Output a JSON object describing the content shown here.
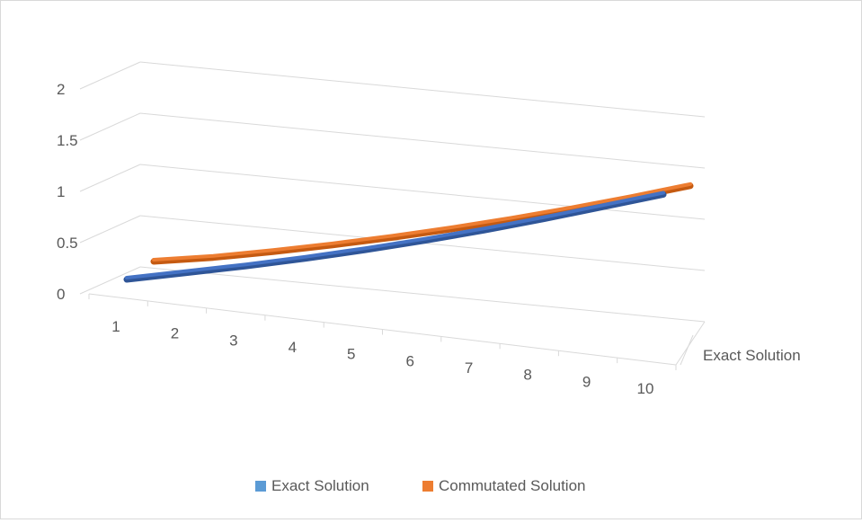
{
  "chart_data": {
    "type": "line",
    "subtype": "3d-line",
    "title": "",
    "categories": [
      "1",
      "2",
      "3",
      "4",
      "5",
      "6",
      "7",
      "8",
      "9",
      "10"
    ],
    "y_ticks": [
      "0",
      "0.5",
      "1",
      "1.5",
      "2"
    ],
    "ylim": [
      0,
      2
    ],
    "depth_axis_labels": [
      "Exact Solution"
    ],
    "grid": true,
    "legend_position": "bottom",
    "series": [
      {
        "name": "Exact Solution",
        "color": "#4472c4",
        "values": [
          0.1,
          0.22,
          0.34,
          0.47,
          0.61,
          0.76,
          0.92,
          1.09,
          1.27,
          1.45
        ]
      },
      {
        "name": "Commutated Solution",
        "color": "#ed7d31",
        "values": [
          0.2,
          0.29,
          0.4,
          0.52,
          0.65,
          0.79,
          0.94,
          1.1,
          1.27,
          1.45
        ]
      }
    ]
  },
  "legend": {
    "items": [
      {
        "label": "Exact Solution",
        "color": "#5b9bd5"
      },
      {
        "label": "Commutated Solution",
        "color": "#ed7d31"
      }
    ]
  }
}
